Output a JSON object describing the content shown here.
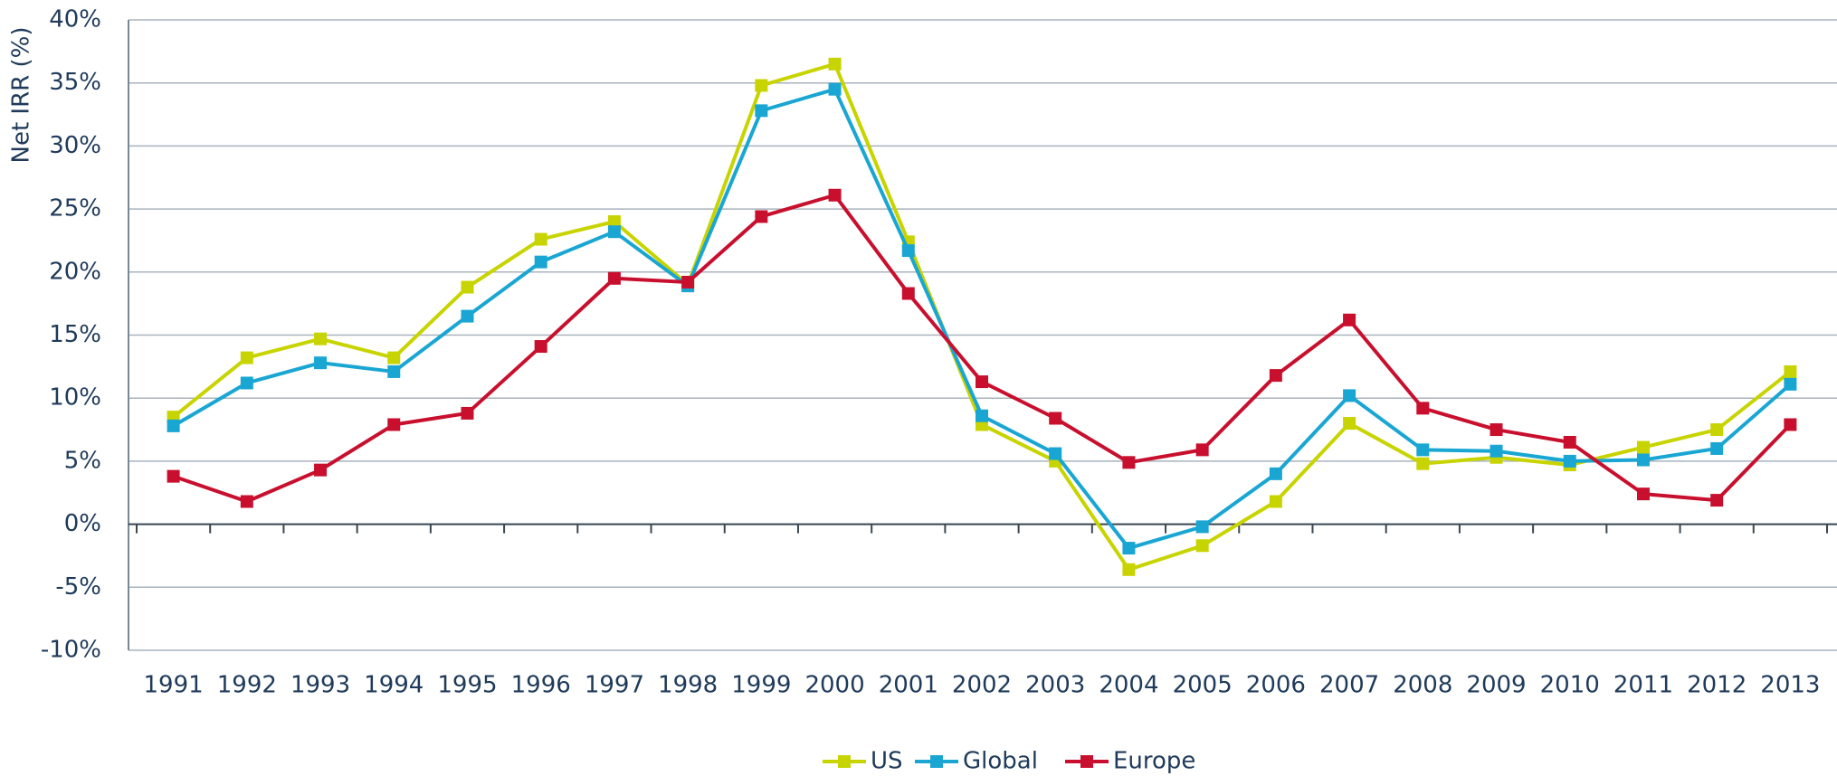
{
  "chart_data": {
    "type": "line",
    "y_label": "Net IRR (%)",
    "categories": [
      "1991",
      "1992",
      "1993",
      "1994",
      "1995",
      "1996",
      "1997",
      "1998",
      "1999",
      "2000",
      "2001",
      "2002",
      "2003",
      "2004",
      "2005",
      "2006",
      "2007",
      "2008",
      "2009",
      "2010",
      "2011",
      "2012",
      "2013"
    ],
    "series": [
      {
        "name": "US",
        "color": "#c8d400",
        "values": [
          8.5,
          13.2,
          14.7,
          13.2,
          18.8,
          22.6,
          24.0,
          19.0,
          34.8,
          36.5,
          22.4,
          7.9,
          5.0,
          -3.6,
          -1.7,
          1.8,
          8.0,
          4.8,
          5.3,
          4.7,
          6.1,
          7.5,
          12.1
        ]
      },
      {
        "name": "Global",
        "color": "#1aa6d3",
        "values": [
          7.8,
          11.2,
          12.8,
          12.1,
          16.5,
          20.8,
          23.2,
          18.9,
          32.8,
          34.5,
          21.7,
          8.6,
          5.6,
          -1.9,
          -0.2,
          4.0,
          10.2,
          5.9,
          5.8,
          5.0,
          5.1,
          6.0,
          11.1
        ]
      },
      {
        "name": "Europe",
        "color": "#c8102e",
        "values": [
          3.8,
          1.8,
          4.3,
          7.9,
          8.8,
          14.1,
          19.5,
          19.2,
          24.4,
          26.1,
          18.3,
          11.3,
          8.4,
          4.9,
          5.9,
          11.8,
          16.2,
          9.2,
          7.5,
          6.5,
          2.4,
          1.9,
          7.9
        ]
      }
    ],
    "ylim": [
      -10,
      40
    ],
    "yticks": [
      {
        "value": -10,
        "label": "-10%"
      },
      {
        "value": -5,
        "label": "-5%"
      },
      {
        "value": 0,
        "label": "0%"
      },
      {
        "value": 5,
        "label": "5%"
      },
      {
        "value": 10,
        "label": "10%"
      },
      {
        "value": 15,
        "label": "15%"
      },
      {
        "value": 20,
        "label": "20%"
      },
      {
        "value": 25,
        "label": "25%"
      },
      {
        "value": 30,
        "label": "30%"
      },
      {
        "value": 35,
        "label": "35%"
      },
      {
        "value": 40,
        "label": "40%"
      }
    ],
    "grid": true,
    "legend": "bottom"
  }
}
